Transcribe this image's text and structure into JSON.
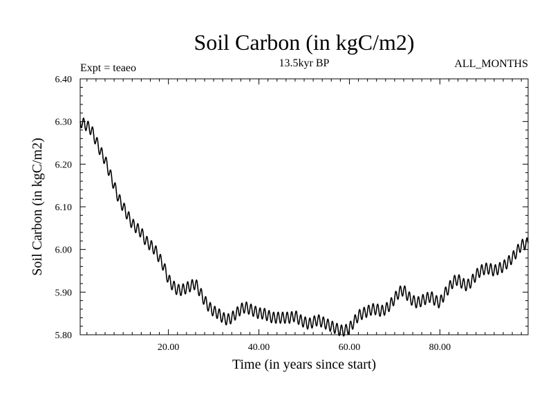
{
  "chart_data": {
    "type": "line",
    "title": "Soil Carbon (in kgC/m2)",
    "subtitle": "13.5kyr BP",
    "experiment_label": "Expt = teaeo",
    "period_label": "ALL_MONTHS",
    "xlabel": "Time (in years since start)",
    "ylabel": "Soil Carbon (in kgC/m2)",
    "xlim": [
      0.5,
      99.5
    ],
    "ylim": [
      5.8,
      6.4
    ],
    "x_ticks": [
      {
        "value": 20,
        "label": "20.00"
      },
      {
        "value": 40,
        "label": "40.00"
      },
      {
        "value": 60,
        "label": "60.00"
      },
      {
        "value": 80,
        "label": "80.00"
      }
    ],
    "y_ticks": [
      {
        "value": 5.8,
        "label": "5.80"
      },
      {
        "value": 5.9,
        "label": "5.90"
      },
      {
        "value": 6.0,
        "label": "6.00"
      },
      {
        "value": 6.1,
        "label": "6.10"
      },
      {
        "value": 6.2,
        "label": "6.20"
      },
      {
        "value": 6.3,
        "label": "6.30"
      },
      {
        "value": 6.4,
        "label": "6.40"
      }
    ],
    "series": [
      {
        "name": "Soil Carbon",
        "color": "#000000",
        "seasonal_amplitude": 0.013,
        "x": [
          0.5,
          2,
          3,
          5,
          6,
          7,
          8,
          9,
          10,
          11,
          12,
          13,
          14,
          15,
          16,
          17,
          18,
          19,
          20,
          21,
          22,
          23,
          24,
          25,
          26,
          27,
          28,
          29,
          30,
          31,
          32,
          33,
          34,
          35,
          36,
          37,
          38,
          39,
          40,
          41,
          42,
          43,
          44,
          45,
          46,
          47,
          48,
          49,
          50,
          51,
          52,
          53,
          54,
          55,
          56,
          57,
          58,
          59,
          60,
          61,
          62,
          63,
          64,
          65,
          66,
          67,
          68,
          69,
          70,
          71,
          72,
          73,
          74,
          75,
          76,
          77,
          78,
          79,
          80,
          81,
          82,
          83,
          84,
          85,
          86,
          87,
          88,
          89,
          90,
          91,
          92,
          93,
          94,
          95,
          96,
          97,
          98,
          99.5
        ],
        "y": [
          6.3,
          6.29,
          6.28,
          6.23,
          6.21,
          6.18,
          6.15,
          6.12,
          6.1,
          6.08,
          6.06,
          6.05,
          6.04,
          6.02,
          6.01,
          6.0,
          5.98,
          5.96,
          5.93,
          5.915,
          5.905,
          5.905,
          5.91,
          5.915,
          5.92,
          5.9,
          5.88,
          5.865,
          5.855,
          5.85,
          5.84,
          5.835,
          5.84,
          5.85,
          5.86,
          5.865,
          5.86,
          5.855,
          5.85,
          5.85,
          5.845,
          5.84,
          5.84,
          5.84,
          5.84,
          5.84,
          5.845,
          5.835,
          5.83,
          5.825,
          5.83,
          5.835,
          5.83,
          5.825,
          5.82,
          5.815,
          5.81,
          5.81,
          5.815,
          5.83,
          5.845,
          5.85,
          5.855,
          5.86,
          5.86,
          5.855,
          5.86,
          5.87,
          5.885,
          5.9,
          5.905,
          5.89,
          5.88,
          5.875,
          5.88,
          5.885,
          5.89,
          5.88,
          5.875,
          5.895,
          5.91,
          5.925,
          5.93,
          5.92,
          5.915,
          5.925,
          5.94,
          5.95,
          5.955,
          5.955,
          5.95,
          5.955,
          5.96,
          5.97,
          5.98,
          5.995,
          6.01,
          6.015
        ]
      }
    ]
  }
}
